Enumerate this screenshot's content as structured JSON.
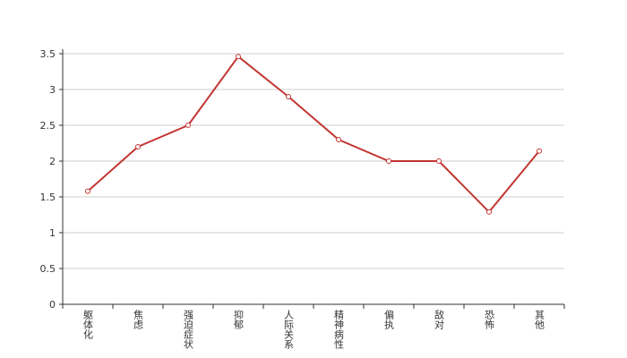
{
  "chart_data": {
    "type": "line",
    "categories": [
      "躯体化",
      "焦虑",
      "强迫症状",
      "抑郁",
      "人际关系",
      "精神病性",
      "偏执",
      "敌对",
      "恐怖",
      "其他"
    ],
    "series": [
      {
        "color": "#c23531",
        "values": [
          1.58,
          2.2,
          2.5,
          3.46,
          2.9,
          2.3,
          2.0,
          2.0,
          1.29,
          2.14
        ]
      }
    ],
    "ylim": [
      0,
      3.5
    ],
    "yticks": [
      0,
      0.5,
      1,
      1.5,
      2,
      2.5,
      3,
      3.5
    ],
    "grid": true
  }
}
